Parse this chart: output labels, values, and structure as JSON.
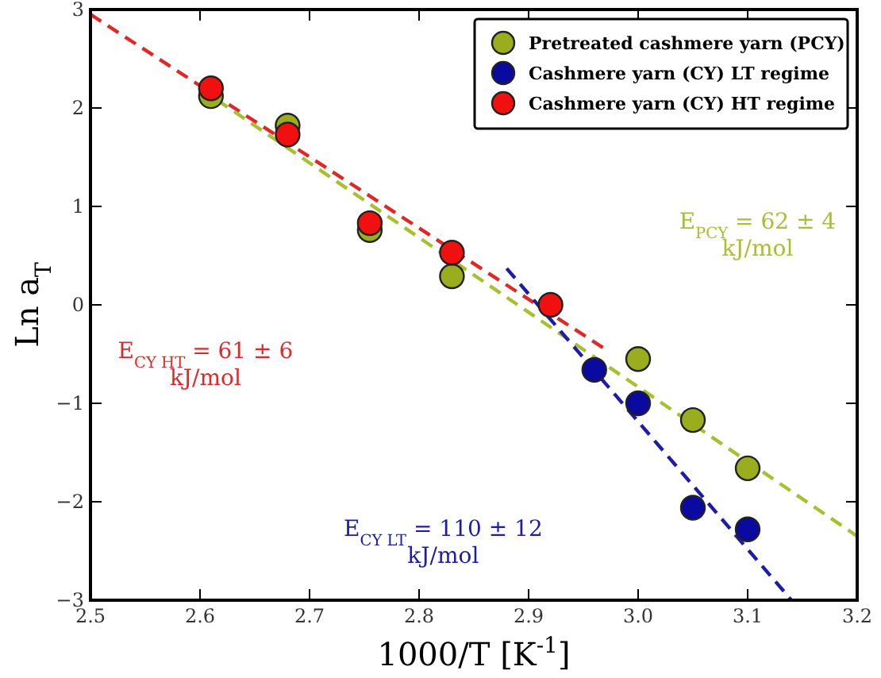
{
  "chart_data": {
    "type": "scatter",
    "xlabel": "1000/T [K$^{-1}$]",
    "ylabel": "Ln a$_{T}$",
    "xlim": [
      2.5,
      3.2
    ],
    "xticks": [
      2.5,
      2.6,
      2.7,
      2.8,
      2.9,
      {
        "value": 3,
        "label": "3.0"
      },
      3.1,
      3.2
    ],
    "ylim": [
      -3,
      3
    ],
    "yticks": [
      -3,
      -2,
      -1,
      0,
      1,
      2,
      3
    ],
    "grid": false,
    "legend": "top right",
    "marker": "circle",
    "series": [
      {
        "name": "Pretreated cashmere yarn (PCY)",
        "color": "#9aad1f",
        "x": [
          2.61,
          2.68,
          2.755,
          2.83,
          3.0,
          3.05,
          3.1
        ],
        "values": [
          2.12,
          1.82,
          0.76,
          0.29,
          -0.55,
          -1.17,
          -1.66
        ]
      },
      {
        "name": "Cashmere yarn (CY) LT regime",
        "color": "#0a0aa0",
        "x": [
          2.96,
          3.0,
          3.05,
          3.1
        ],
        "values": [
          -0.66,
          -1.0,
          -2.06,
          -2.28
        ]
      },
      {
        "name": "Cashmere yarn (CY) HT regime",
        "color": "#f01010",
        "x": [
          2.61,
          2.68,
          2.755,
          2.83,
          2.92
        ],
        "values": [
          2.2,
          1.73,
          0.83,
          0.53,
          0.0
        ]
      },
      {
        "type": "line",
        "color": "#e02828",
        "line_style": "dashed",
        "marker": "none",
        "x": [
          2.5,
          2.97
        ],
        "values": [
          2.95,
          -0.45
        ]
      },
      {
        "type": "line",
        "color": "#a8c030",
        "line_style": "dashed",
        "marker": "none",
        "x": [
          2.6,
          3.2
        ],
        "values": [
          2.2,
          -2.35
        ]
      },
      {
        "type": "line",
        "color": "#1c1ca8",
        "line_style": "dashed",
        "marker": "none",
        "x": [
          2.88,
          3.14
        ],
        "values": [
          0.37,
          -3.0
        ]
      }
    ],
    "annotations": [
      "E$_{CY HT}$ = 61 ± 6\nkJ/mol",
      "E$_{PCY}$ = 62 ± 4\nkJ/mol",
      "E$_{CY LT}$ = 110 ± 12\nkJ/mol"
    ]
  }
}
